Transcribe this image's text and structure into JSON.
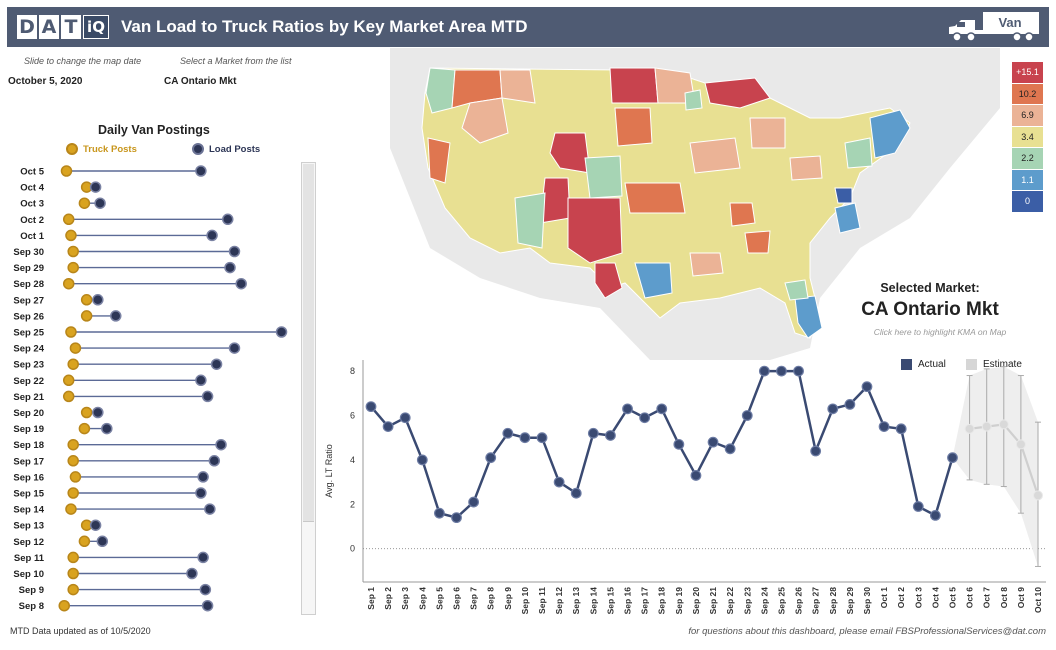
{
  "header": {
    "logo_letters": [
      "D",
      "A",
      "T",
      "iQ"
    ],
    "title": "Van Load to Truck Ratios by Key Market Area MTD",
    "equipment_label": "Van"
  },
  "controls": {
    "date_hint": "Slide to change the map date",
    "date_value": "October 5, 2020",
    "market_hint": "Select a Market from the list",
    "market_value": "CA Ontario Mkt"
  },
  "postings": {
    "title": "Daily Van Postings",
    "truck_label": "Truck Posts",
    "load_label": "Load Posts",
    "colors": {
      "truck": "#d9a320",
      "load": "#2d3656",
      "line": "#5b6a96"
    },
    "rows": [
      {
        "day": "Oct 5",
        "truck": 0.02,
        "load": 0.62
      },
      {
        "day": "Oct 4",
        "truck": 0.11,
        "load": 0.15
      },
      {
        "day": "Oct 3",
        "truck": 0.1,
        "load": 0.17
      },
      {
        "day": "Oct 2",
        "truck": 0.03,
        "load": 0.74
      },
      {
        "day": "Oct 1",
        "truck": 0.04,
        "load": 0.67
      },
      {
        "day": "Sep 30",
        "truck": 0.05,
        "load": 0.77
      },
      {
        "day": "Sep 29",
        "truck": 0.05,
        "load": 0.75
      },
      {
        "day": "Sep 28",
        "truck": 0.03,
        "load": 0.8
      },
      {
        "day": "Sep 27",
        "truck": 0.11,
        "load": 0.16
      },
      {
        "day": "Sep 26",
        "truck": 0.11,
        "load": 0.24
      },
      {
        "day": "Sep 25",
        "truck": 0.04,
        "load": 0.98
      },
      {
        "day": "Sep 24",
        "truck": 0.06,
        "load": 0.77
      },
      {
        "day": "Sep 23",
        "truck": 0.05,
        "load": 0.69
      },
      {
        "day": "Sep 22",
        "truck": 0.03,
        "load": 0.62
      },
      {
        "day": "Sep 21",
        "truck": 0.03,
        "load": 0.65
      },
      {
        "day": "Sep 20",
        "truck": 0.11,
        "load": 0.16
      },
      {
        "day": "Sep 19",
        "truck": 0.1,
        "load": 0.2
      },
      {
        "day": "Sep 18",
        "truck": 0.05,
        "load": 0.71
      },
      {
        "day": "Sep 17",
        "truck": 0.05,
        "load": 0.68
      },
      {
        "day": "Sep 16",
        "truck": 0.06,
        "load": 0.63
      },
      {
        "day": "Sep 15",
        "truck": 0.05,
        "load": 0.62
      },
      {
        "day": "Sep 14",
        "truck": 0.04,
        "load": 0.66
      },
      {
        "day": "Sep 13",
        "truck": 0.11,
        "load": 0.15
      },
      {
        "day": "Sep 12",
        "truck": 0.1,
        "load": 0.18
      },
      {
        "day": "Sep 11",
        "truck": 0.05,
        "load": 0.63
      },
      {
        "day": "Sep 10",
        "truck": 0.05,
        "load": 0.58
      },
      {
        "day": "Sep 9",
        "truck": 0.05,
        "load": 0.64
      },
      {
        "day": "Sep 8",
        "truck": 0.01,
        "load": 0.65
      }
    ]
  },
  "map": {
    "legend": [
      {
        "label": "+15.1",
        "color": "#c8434e",
        "text": "#ffffff"
      },
      {
        "label": "10.2",
        "color": "#df7650",
        "text": "#222222"
      },
      {
        "label": "6.9",
        "color": "#ebb396",
        "text": "#222222"
      },
      {
        "label": "3.4",
        "color": "#e8e092",
        "text": "#222222"
      },
      {
        "label": "2.2",
        "color": "#a6d4b4",
        "text": "#222222"
      },
      {
        "label": "1.1",
        "color": "#5d9ccc",
        "text": "#ffffff"
      },
      {
        "label": "0",
        "color": "#3b5ea6",
        "text": "#ffffff"
      }
    ],
    "selected_label": "Selected Market:",
    "selected_value": "CA Ontario Mkt",
    "highlight_link": "Click here to highlight KMA on Map"
  },
  "chart_data": {
    "type": "line",
    "ylabel": "Avg. LT Ratio",
    "ylim": [
      -1.5,
      8.5
    ],
    "yticks": [
      0,
      2,
      4,
      6,
      8
    ],
    "actual_color": "#3a4a72",
    "estimate_color": "#cfcfcf",
    "legend": [
      {
        "name": "Actual"
      },
      {
        "name": "Estimate"
      }
    ],
    "categories": [
      "Sep 1",
      "Sep 2",
      "Sep 3",
      "Sep 4",
      "Sep 5",
      "Sep 6",
      "Sep 7",
      "Sep 8",
      "Sep 9",
      "Sep 10",
      "Sep 11",
      "Sep 12",
      "Sep 13",
      "Sep 14",
      "Sep 15",
      "Sep 16",
      "Sep 17",
      "Sep 18",
      "Sep 19",
      "Sep 20",
      "Sep 21",
      "Sep 22",
      "Sep 23",
      "Sep 24",
      "Sep 25",
      "Sep 26",
      "Sep 27",
      "Sep 28",
      "Sep 29",
      "Sep 30",
      "Oct 1",
      "Oct 2",
      "Oct 3",
      "Oct 4",
      "Oct 5",
      "Oct 6",
      "Oct 7",
      "Oct 8",
      "Oct 9",
      "Oct 10"
    ],
    "series": [
      {
        "name": "Actual",
        "values": [
          6.4,
          5.5,
          5.9,
          4.0,
          1.6,
          1.4,
          2.1,
          4.1,
          5.2,
          5.0,
          5.0,
          3.0,
          2.5,
          5.2,
          5.1,
          6.3,
          5.9,
          6.3,
          4.7,
          3.3,
          4.8,
          4.5,
          6.0,
          8.0,
          8.0,
          8.0,
          4.4,
          6.3,
          6.5,
          7.3,
          5.5,
          5.4,
          1.9,
          1.5,
          4.1,
          null,
          null,
          null,
          null,
          null
        ]
      },
      {
        "name": "Estimate",
        "values": [
          null,
          null,
          null,
          null,
          null,
          null,
          null,
          null,
          null,
          null,
          null,
          null,
          null,
          null,
          null,
          null,
          null,
          null,
          null,
          null,
          null,
          null,
          null,
          null,
          null,
          null,
          null,
          null,
          null,
          null,
          null,
          null,
          null,
          null,
          null,
          5.4,
          5.5,
          5.6,
          4.7,
          2.4
        ],
        "lower": [
          null,
          null,
          null,
          null,
          null,
          null,
          null,
          null,
          null,
          null,
          null,
          null,
          null,
          null,
          null,
          null,
          null,
          null,
          null,
          null,
          null,
          null,
          null,
          null,
          null,
          null,
          null,
          null,
          null,
          null,
          null,
          null,
          null,
          null,
          null,
          3.1,
          2.9,
          2.8,
          1.6,
          -0.8
        ],
        "upper": [
          null,
          null,
          null,
          null,
          null,
          null,
          null,
          null,
          null,
          null,
          null,
          null,
          null,
          null,
          null,
          null,
          null,
          null,
          null,
          null,
          null,
          null,
          null,
          null,
          null,
          null,
          null,
          null,
          null,
          null,
          null,
          null,
          null,
          null,
          null,
          7.8,
          8.1,
          8.2,
          7.8,
          5.7
        ]
      }
    ]
  },
  "footer": {
    "updated": "MTD Data updated as of 10/5/2020",
    "contact": "for questions about this dashboard, please email FBSProfessionalServices@dat.com"
  }
}
